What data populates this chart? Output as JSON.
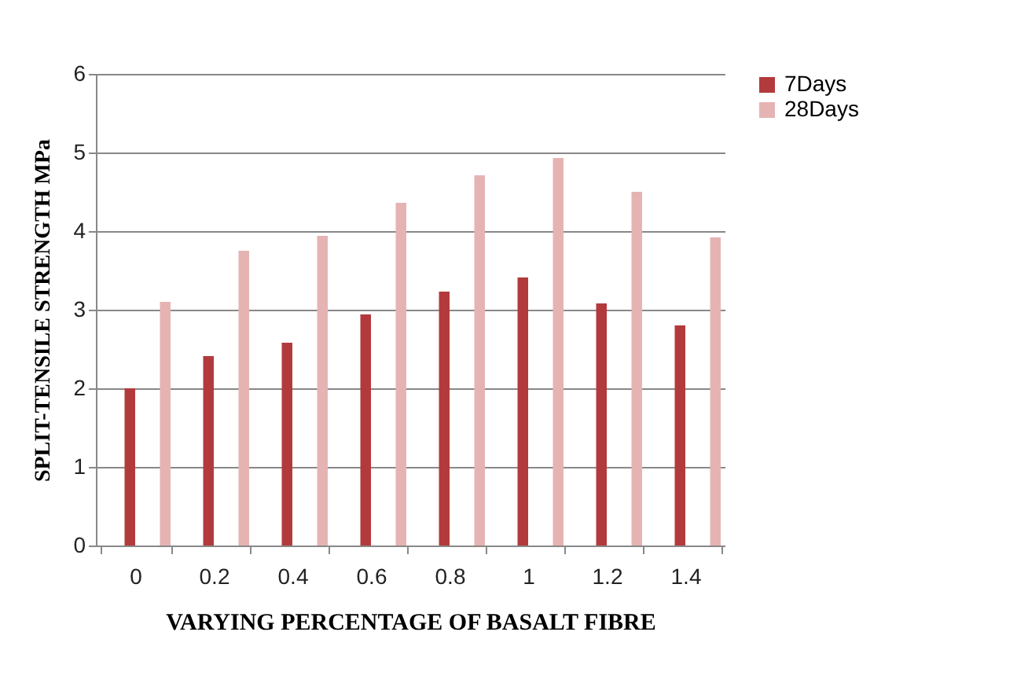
{
  "chart_data": {
    "type": "bar",
    "xlabel": "VARYING PERCENTAGE OF BASALT FIBRE",
    "ylabel": "SPLIT-TENSILE STRENGTH MPa",
    "categories": [
      "0",
      "0.2",
      "0.4",
      "0.6",
      "0.8",
      "1",
      "1.2",
      "1.4"
    ],
    "series": [
      {
        "name": "7Days",
        "color": "#b33a3c",
        "values": [
          2.0,
          2.41,
          2.58,
          2.94,
          3.23,
          3.41,
          3.08,
          2.8
        ]
      },
      {
        "name": "28Days",
        "color": "#e6b3b3",
        "values": [
          3.1,
          3.75,
          3.94,
          4.36,
          4.71,
          4.93,
          4.5,
          3.92
        ]
      }
    ],
    "ylim": [
      0,
      6
    ],
    "yticks": [
      0,
      1,
      2,
      3,
      4,
      5,
      6
    ],
    "grid": "y",
    "legend": "right"
  }
}
